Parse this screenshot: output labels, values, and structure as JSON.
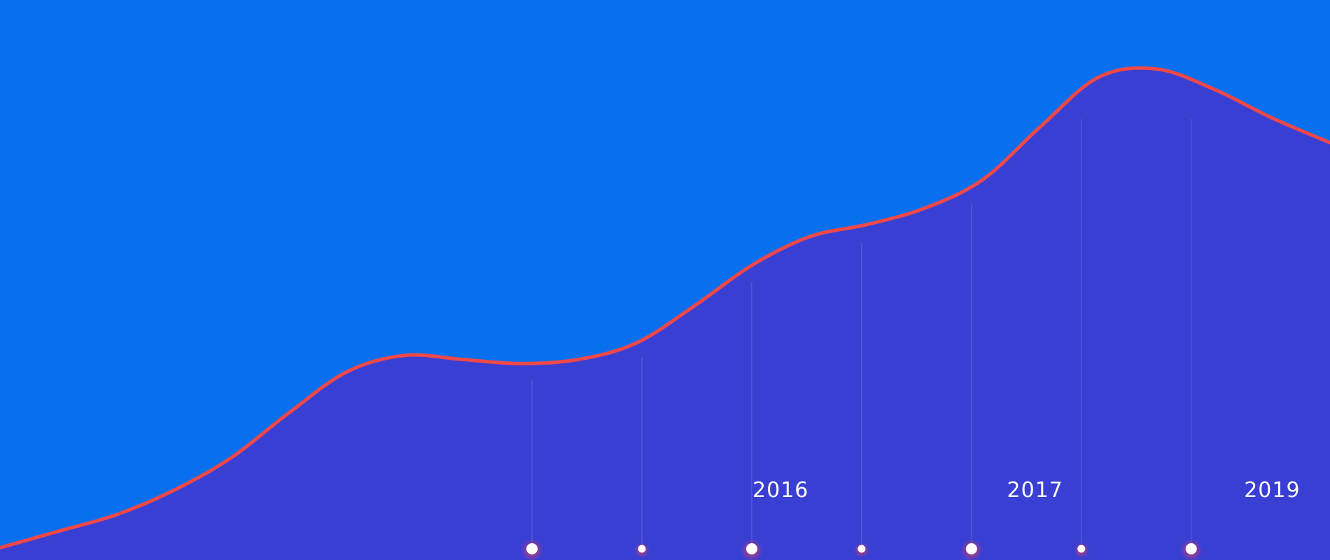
{
  "chart_data": {
    "type": "area",
    "title": "",
    "xlabel": "",
    "ylabel": "",
    "x": [
      0,
      1,
      2,
      3,
      4,
      5,
      6,
      7,
      8,
      9,
      10,
      11,
      12,
      13,
      14,
      15,
      16,
      17,
      18,
      19,
      20,
      21,
      22,
      23
    ],
    "series": [
      {
        "values": [
          0.03,
          0.07,
          0.11,
          0.17,
          0.25,
          0.36,
          0.46,
          0.5,
          0.49,
          0.48,
          0.49,
          0.53,
          0.62,
          0.72,
          0.79,
          0.82,
          0.86,
          0.93,
          1.06,
          1.18,
          1.2,
          1.15,
          1.08,
          1.02
        ]
      }
    ],
    "ylim": [
      0,
      1.3
    ],
    "grid": false,
    "legend": "none",
    "year_labels": [
      {
        "text": "2016",
        "x": 13.5
      },
      {
        "text": "2017",
        "x": 17.9
      },
      {
        "text": "2019",
        "x": 22.0
      }
    ],
    "markers": [
      {
        "x": 9.2,
        "size": "large"
      },
      {
        "x": 11.1,
        "size": "small"
      },
      {
        "x": 13.0,
        "size": "large"
      },
      {
        "x": 14.9,
        "size": "small"
      },
      {
        "x": 16.8,
        "size": "large"
      },
      {
        "x": 18.7,
        "size": "small"
      },
      {
        "x": 20.6,
        "size": "large"
      }
    ],
    "colors": {
      "background": "#0870ee",
      "area_fill": "#3a3fd4",
      "line": "#f04848",
      "marker": "#ffffff",
      "text": "#ffffff"
    }
  }
}
